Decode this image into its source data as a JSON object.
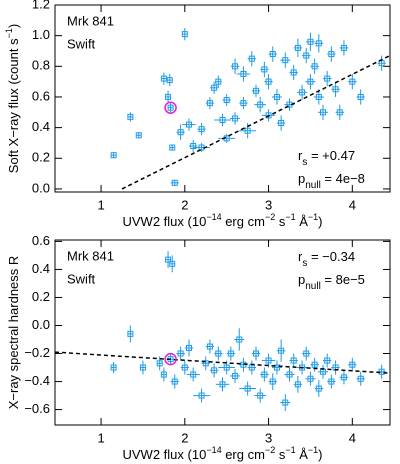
{
  "chart_data": [
    {
      "type": "scatter",
      "xlabel": [
        {
          "text": "UVW2 flux (10"
        },
        {
          "text": "−14",
          "sup": true
        },
        {
          "text": " erg cm"
        },
        {
          "text": "−2",
          "sup": true
        },
        {
          "text": " s"
        },
        {
          "text": "−1",
          "sup": true
        },
        {
          "text": " Å"
        },
        {
          "text": "−1",
          "sup": true
        },
        {
          "text": ")"
        }
      ],
      "ylabel": [
        {
          "text": "Soft X−ray flux (count s"
        },
        {
          "text": "−1",
          "sup": true
        },
        {
          "text": ")"
        }
      ],
      "annotations": [
        {
          "text": "Mrk 841"
        },
        {
          "text": "Swift"
        }
      ],
      "stats": [
        {
          "symbol": "r",
          "sub": "s",
          "text": " = +0.47"
        },
        {
          "symbol": "p",
          "sub": "null",
          "text": " = 4e−8"
        }
      ],
      "xlim": [
        0.45,
        4.45
      ],
      "xticks": [
        1,
        2,
        3,
        4
      ],
      "ylim": [
        -0.02,
        1.2
      ],
      "yticks": [
        {
          "value": 0,
          "label": "0.0"
        },
        0.2,
        0.4,
        0.6,
        0.8,
        {
          "value": 1,
          "label": "1.0"
        },
        1.2
      ],
      "fit_line": {
        "x": [
          1.25,
          4.45
        ],
        "y": [
          0,
          0.87
        ]
      },
      "highlight": {
        "x": 1.83,
        "y": 0.53,
        "color": "#e020e0"
      },
      "series": [
        {
          "color": "#1e9be8",
          "x": [
            1.15,
            1.35,
            1.45,
            1.75,
            1.82,
            1.8,
            1.85,
            1.88,
            1.95,
            2.0,
            2.05,
            2.1,
            2.2,
            2.2,
            2.3,
            2.35,
            2.4,
            2.45,
            2.5,
            2.5,
            2.6,
            2.6,
            2.7,
            2.7,
            2.75,
            2.8,
            2.85,
            2.9,
            2.95,
            3.0,
            3.0,
            3.05,
            3.1,
            3.15,
            3.2,
            3.25,
            3.3,
            3.35,
            3.4,
            3.45,
            3.5,
            3.5,
            3.55,
            3.6,
            3.6,
            3.65,
            3.7,
            3.75,
            3.8,
            3.85,
            3.9,
            4.0,
            4.1,
            4.35,
            1.83
          ],
          "values": [
            0.22,
            0.47,
            0.35,
            0.72,
            0.71,
            0.6,
            0.27,
            0.04,
            0.37,
            1.01,
            0.42,
            0.28,
            0.27,
            0.39,
            0.56,
            0.66,
            0.7,
            0.45,
            0.33,
            0.58,
            0.8,
            0.46,
            0.75,
            0.56,
            0.38,
            0.85,
            0.64,
            0.55,
            0.78,
            0.48,
            0.7,
            0.88,
            0.6,
            0.43,
            0.84,
            0.55,
            0.76,
            0.92,
            0.63,
            0.87,
            0.7,
            0.96,
            0.8,
            0.95,
            0.6,
            0.5,
            0.72,
            0.88,
            0.65,
            0.5,
            0.92,
            0.7,
            0.6,
            0.82,
            0.53
          ],
          "xerr": [
            0.03,
            0.03,
            0.03,
            0.03,
            0.03,
            0.03,
            0.03,
            0.05,
            0.05,
            0.03,
            0.08,
            0.05,
            0.1,
            0.05,
            0.05,
            0.05,
            0.04,
            0.1,
            0.1,
            0.05,
            0.05,
            0.06,
            0.08,
            0.05,
            0.1,
            0.05,
            0.05,
            0.07,
            0.05,
            0.08,
            0.05,
            0.05,
            0.06,
            0.05,
            0.06,
            0.06,
            0.05,
            0.05,
            0.06,
            0.05,
            0.06,
            0.05,
            0.05,
            0.05,
            0.06,
            0.06,
            0.05,
            0.05,
            0.05,
            0.05,
            0.05,
            0.05,
            0.05,
            0.05,
            0.03
          ],
          "yerr": [
            0.02,
            0.03,
            0.02,
            0.04,
            0.04,
            0.04,
            0.02,
            0.02,
            0.05,
            0.04,
            0.04,
            0.04,
            0.03,
            0.04,
            0.04,
            0.04,
            0.04,
            0.04,
            0.03,
            0.04,
            0.05,
            0.04,
            0.05,
            0.04,
            0.05,
            0.05,
            0.04,
            0.05,
            0.05,
            0.04,
            0.05,
            0.05,
            0.05,
            0.05,
            0.05,
            0.04,
            0.05,
            0.06,
            0.05,
            0.05,
            0.05,
            0.06,
            0.05,
            0.06,
            0.05,
            0.05,
            0.05,
            0.05,
            0.05,
            0.05,
            0.05,
            0.05,
            0.05,
            0.05,
            0.03
          ]
        }
      ]
    },
    {
      "type": "scatter",
      "xlabel": [
        {
          "text": "UVW2 flux (10"
        },
        {
          "text": "−14",
          "sup": true
        },
        {
          "text": " erg cm"
        },
        {
          "text": "−2",
          "sup": true
        },
        {
          "text": " s"
        },
        {
          "text": "−1",
          "sup": true
        },
        {
          "text": " Å"
        },
        {
          "text": "−1",
          "sup": true
        },
        {
          "text": ")"
        }
      ],
      "ylabel": [
        {
          "text": "X−ray spectral hardness R"
        }
      ],
      "annotations": [
        {
          "text": "Mrk 841"
        },
        {
          "text": "Swift"
        }
      ],
      "stats": [
        {
          "symbol": "r",
          "sub": "s",
          "text": " = −0.34"
        },
        {
          "symbol": "p",
          "sub": "null",
          "text": " = 8e−5"
        }
      ],
      "xlim": [
        0.45,
        4.45
      ],
      "xticks": [
        1,
        2,
        3,
        4
      ],
      "ylim": [
        -0.71,
        0.61
      ],
      "yticks": [
        {
          "value": -0.6,
          "label": "−0.6"
        },
        {
          "value": -0.4,
          "label": "−0.4"
        },
        {
          "value": -0.2,
          "label": "−0.2"
        },
        {
          "value": 0,
          "label": "0.0"
        },
        0.2,
        0.4,
        0.6
      ],
      "fit_line": {
        "x": [
          0.45,
          4.45
        ],
        "y": [
          -0.19,
          -0.34
        ]
      },
      "highlight": {
        "x": 1.83,
        "y": -0.24,
        "color": "#e020e0"
      },
      "series": [
        {
          "color": "#1e9be8",
          "x": [
            1.15,
            1.35,
            1.5,
            1.7,
            1.75,
            1.8,
            1.85,
            1.88,
            1.95,
            2.0,
            2.05,
            2.1,
            2.2,
            2.25,
            2.3,
            2.35,
            2.4,
            2.45,
            2.5,
            2.55,
            2.6,
            2.65,
            2.7,
            2.75,
            2.8,
            2.85,
            2.9,
            2.95,
            3.0,
            3.05,
            3.1,
            3.15,
            3.2,
            3.25,
            3.3,
            3.35,
            3.4,
            3.45,
            3.5,
            3.55,
            3.6,
            3.65,
            3.7,
            3.75,
            3.8,
            3.9,
            4.0,
            4.1,
            4.35,
            1.83
          ],
          "values": [
            -0.3,
            -0.06,
            -0.3,
            -0.27,
            -0.35,
            0.47,
            0.44,
            -0.4,
            -0.2,
            -0.3,
            -0.16,
            -0.35,
            -0.5,
            -0.27,
            -0.15,
            -0.32,
            -0.2,
            -0.42,
            -0.3,
            -0.2,
            -0.36,
            -0.1,
            -0.28,
            -0.45,
            -0.3,
            -0.2,
            -0.5,
            -0.35,
            -0.25,
            -0.4,
            -0.3,
            -0.18,
            -0.55,
            -0.35,
            -0.25,
            -0.42,
            -0.3,
            -0.2,
            -0.38,
            -0.28,
            -0.45,
            -0.33,
            -0.25,
            -0.4,
            -0.3,
            -0.37,
            -0.28,
            -0.38,
            -0.33,
            -0.24
          ],
          "xerr": [
            0.03,
            0.03,
            0.03,
            0.03,
            0.03,
            0.03,
            0.03,
            0.05,
            0.05,
            0.05,
            0.05,
            0.08,
            0.1,
            0.05,
            0.05,
            0.05,
            0.05,
            0.08,
            0.1,
            0.05,
            0.06,
            0.06,
            0.05,
            0.1,
            0.05,
            0.05,
            0.07,
            0.05,
            0.08,
            0.05,
            0.06,
            0.05,
            0.06,
            0.06,
            0.05,
            0.05,
            0.06,
            0.05,
            0.06,
            0.05,
            0.05,
            0.06,
            0.05,
            0.05,
            0.05,
            0.05,
            0.05,
            0.05,
            0.05,
            0.03
          ],
          "yerr": [
            0.04,
            0.06,
            0.05,
            0.05,
            0.05,
            0.06,
            0.06,
            0.05,
            0.05,
            0.05,
            0.06,
            0.05,
            0.05,
            0.05,
            0.05,
            0.05,
            0.05,
            0.05,
            0.05,
            0.05,
            0.05,
            0.08,
            0.05,
            0.05,
            0.05,
            0.05,
            0.05,
            0.05,
            0.05,
            0.06,
            0.05,
            0.08,
            0.06,
            0.05,
            0.05,
            0.06,
            0.05,
            0.05,
            0.05,
            0.05,
            0.06,
            0.05,
            0.05,
            0.05,
            0.05,
            0.05,
            0.05,
            0.05,
            0.05,
            0.04
          ]
        }
      ]
    }
  ]
}
